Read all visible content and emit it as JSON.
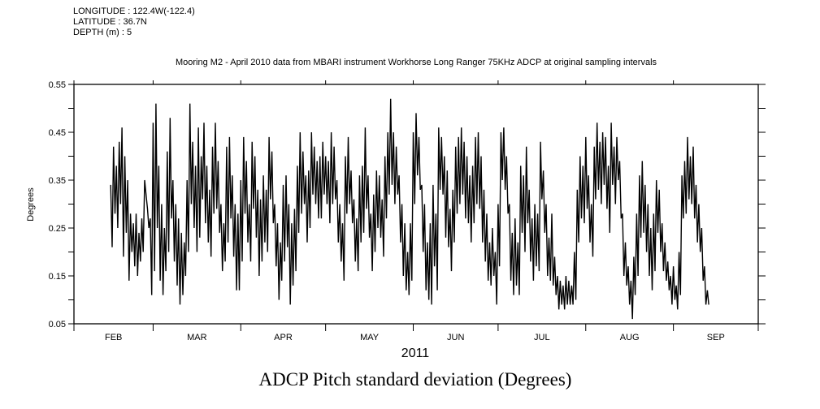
{
  "header": {
    "longitude": "LONGITUDE : 122.4W(-122.4)",
    "latitude": "LATITUDE : 36.7N",
    "depth": "DEPTH (m) : 5"
  },
  "chart_data": {
    "type": "line",
    "subtitle": "Mooring M2 - April 2010 data from MBARI instrument Workhorse Long Ranger 75KHz ADCP at original sampling intervals",
    "title": "ADCP Pitch standard deviation (Degrees)",
    "xlabel": "2011",
    "ylabel": "Degrees",
    "ylim": [
      0.05,
      0.55
    ],
    "yticks": [
      "0.05",
      "0.15",
      "0.25",
      "0.35",
      "0.45",
      "0.55"
    ],
    "x_range_day_of_year": [
      32,
      274
    ],
    "months": [
      {
        "label": "FEB",
        "start_day": 32,
        "end_day": 60
      },
      {
        "label": "MAR",
        "start_day": 60,
        "end_day": 91
      },
      {
        "label": "APR",
        "start_day": 91,
        "end_day": 121
      },
      {
        "label": "MAY",
        "start_day": 121,
        "end_day": 152
      },
      {
        "label": "JUN",
        "start_day": 152,
        "end_day": 182
      },
      {
        "label": "JUL",
        "start_day": 182,
        "end_day": 213
      },
      {
        "label": "AUG",
        "start_day": 213,
        "end_day": 244
      },
      {
        "label": "SEP",
        "start_day": 244,
        "end_day": 274
      }
    ],
    "series": [
      {
        "name": "Pitch std dev",
        "start_day_of_year": 45,
        "step_days": 0.5,
        "values": [
          0.34,
          0.21,
          0.42,
          0.28,
          0.38,
          0.25,
          0.43,
          0.3,
          0.46,
          0.19,
          0.4,
          0.24,
          0.35,
          0.14,
          0.28,
          0.2,
          0.26,
          0.17,
          0.28,
          0.15,
          0.24,
          0.18,
          0.27,
          0.2,
          0.35,
          0.32,
          0.29,
          0.25,
          0.27,
          0.11,
          0.47,
          0.16,
          0.51,
          0.25,
          0.38,
          0.14,
          0.3,
          0.11,
          0.25,
          0.16,
          0.41,
          0.2,
          0.48,
          0.27,
          0.35,
          0.18,
          0.3,
          0.13,
          0.27,
          0.09,
          0.24,
          0.11,
          0.22,
          0.15,
          0.35,
          0.2,
          0.51,
          0.3,
          0.43,
          0.25,
          0.38,
          0.2,
          0.46,
          0.23,
          0.4,
          0.31,
          0.47,
          0.26,
          0.38,
          0.22,
          0.33,
          0.19,
          0.42,
          0.28,
          0.47,
          0.29,
          0.39,
          0.24,
          0.3,
          0.16,
          0.26,
          0.18,
          0.42,
          0.22,
          0.44,
          0.27,
          0.36,
          0.19,
          0.3,
          0.12,
          0.28,
          0.12,
          0.35,
          0.18,
          0.44,
          0.28,
          0.39,
          0.22,
          0.3,
          0.18,
          0.43,
          0.29,
          0.4,
          0.23,
          0.33,
          0.15,
          0.31,
          0.18,
          0.36,
          0.22,
          0.33,
          0.2,
          0.44,
          0.31,
          0.41,
          0.26,
          0.3,
          0.17,
          0.26,
          0.1,
          0.22,
          0.14,
          0.34,
          0.18,
          0.36,
          0.21,
          0.3,
          0.09,
          0.26,
          0.13,
          0.29,
          0.16,
          0.38,
          0.24,
          0.45,
          0.28,
          0.41,
          0.3,
          0.36,
          0.22,
          0.37,
          0.25,
          0.45,
          0.32,
          0.42,
          0.3,
          0.39,
          0.27,
          0.4,
          0.27,
          0.43,
          0.32,
          0.4,
          0.3,
          0.39,
          0.26,
          0.45,
          0.3,
          0.42,
          0.31,
          0.35,
          0.22,
          0.3,
          0.18,
          0.26,
          0.14,
          0.4,
          0.28,
          0.44,
          0.3,
          0.37,
          0.26,
          0.31,
          0.18,
          0.27,
          0.16,
          0.36,
          0.22,
          0.38,
          0.24,
          0.46,
          0.29,
          0.36,
          0.23,
          0.28,
          0.16,
          0.32,
          0.2,
          0.37,
          0.25,
          0.36,
          0.23,
          0.31,
          0.19,
          0.4,
          0.27,
          0.45,
          0.32,
          0.52,
          0.34,
          0.45,
          0.3,
          0.42,
          0.32,
          0.36,
          0.22,
          0.3,
          0.15,
          0.26,
          0.12,
          0.2,
          0.11,
          0.26,
          0.14,
          0.45,
          0.3,
          0.49,
          0.36,
          0.44,
          0.33,
          0.34,
          0.2,
          0.3,
          0.12,
          0.22,
          0.1,
          0.26,
          0.09,
          0.34,
          0.17,
          0.28,
          0.12,
          0.46,
          0.33,
          0.44,
          0.32,
          0.4,
          0.23,
          0.37,
          0.21,
          0.29,
          0.16,
          0.33,
          0.22,
          0.42,
          0.28,
          0.44,
          0.3,
          0.46,
          0.32,
          0.43,
          0.27,
          0.4,
          0.26,
          0.36,
          0.22,
          0.38,
          0.26,
          0.44,
          0.3,
          0.45,
          0.29,
          0.4,
          0.22,
          0.33,
          0.18,
          0.28,
          0.14,
          0.22,
          0.13,
          0.25,
          0.15,
          0.2,
          0.09,
          0.3,
          0.17,
          0.45,
          0.35,
          0.46,
          0.33,
          0.4,
          0.28,
          0.3,
          0.14,
          0.24,
          0.11,
          0.27,
          0.13,
          0.22,
          0.11,
          0.38,
          0.24,
          0.36,
          0.2,
          0.42,
          0.26,
          0.33,
          0.18,
          0.27,
          0.14,
          0.3,
          0.17,
          0.28,
          0.16,
          0.43,
          0.31,
          0.37,
          0.24,
          0.3,
          0.15,
          0.23,
          0.14,
          0.28,
          0.13,
          0.19,
          0.11,
          0.15,
          0.08,
          0.14,
          0.09,
          0.13,
          0.08,
          0.15,
          0.09,
          0.14,
          0.09,
          0.13,
          0.09,
          0.2,
          0.1,
          0.33,
          0.22,
          0.4,
          0.27,
          0.38,
          0.26,
          0.44,
          0.29,
          0.36,
          0.22,
          0.3,
          0.19,
          0.42,
          0.31,
          0.47,
          0.33,
          0.43,
          0.3,
          0.45,
          0.34,
          0.44,
          0.29,
          0.38,
          0.24,
          0.47,
          0.34,
          0.42,
          0.3,
          0.44,
          0.35,
          0.39,
          0.27,
          0.28,
          0.15,
          0.22,
          0.13,
          0.17,
          0.09,
          0.14,
          0.06,
          0.19,
          0.11,
          0.28,
          0.15,
          0.36,
          0.23,
          0.39,
          0.24,
          0.34,
          0.2,
          0.3,
          0.15,
          0.25,
          0.12,
          0.28,
          0.16,
          0.35,
          0.24,
          0.33,
          0.2,
          0.26,
          0.16,
          0.22,
          0.14,
          0.18,
          0.12,
          0.15,
          0.09,
          0.17,
          0.1,
          0.13,
          0.08,
          0.2,
          0.11,
          0.36,
          0.27,
          0.39,
          0.28,
          0.44,
          0.31,
          0.4,
          0.3,
          0.42,
          0.27,
          0.34,
          0.22,
          0.3,
          0.2,
          0.25,
          0.14,
          0.17,
          0.09,
          0.12,
          0.09
        ]
      }
    ]
  }
}
